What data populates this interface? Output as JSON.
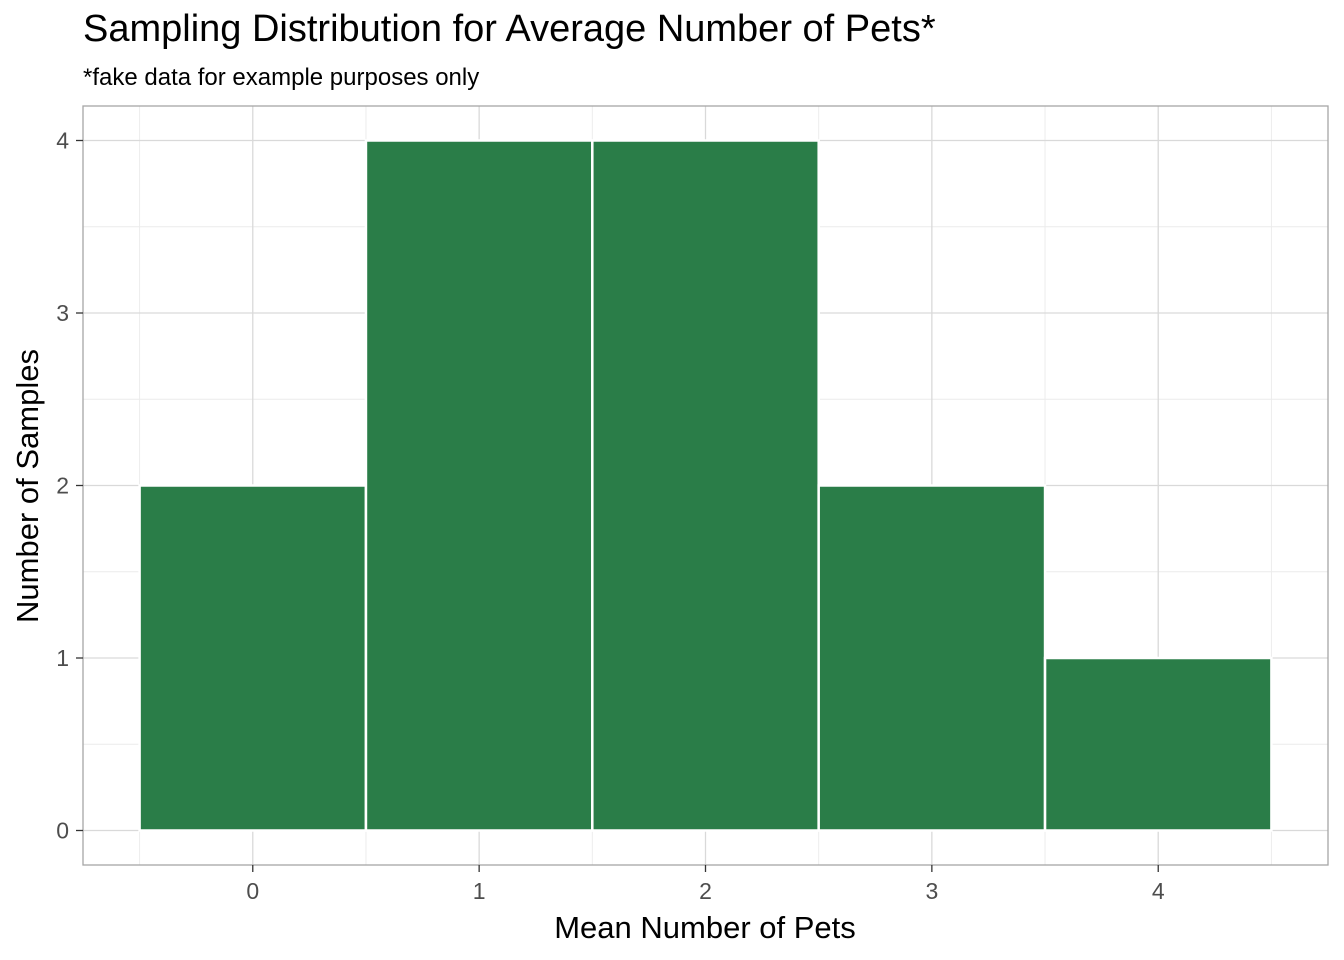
{
  "chart_data": {
    "type": "bar",
    "title": "Sampling Distribution for Average Number of Pets*",
    "subtitle": "*fake data for example purposes only",
    "xlabel": "Mean Number of Pets",
    "ylabel": "Number of Samples",
    "categories": [
      0,
      1,
      2,
      3,
      4
    ],
    "values": [
      2,
      4,
      4,
      2,
      1
    ],
    "bin_width": 1,
    "xlim": [
      -0.5,
      4.5
    ],
    "ylim": [
      0,
      4
    ],
    "x_ticks": [
      0,
      1,
      2,
      3,
      4
    ],
    "y_ticks": [
      0,
      1,
      2,
      3,
      4
    ],
    "bar_color": "#2a7d48",
    "bar_outline": "#ffffff",
    "grid": true,
    "legend": "none"
  }
}
